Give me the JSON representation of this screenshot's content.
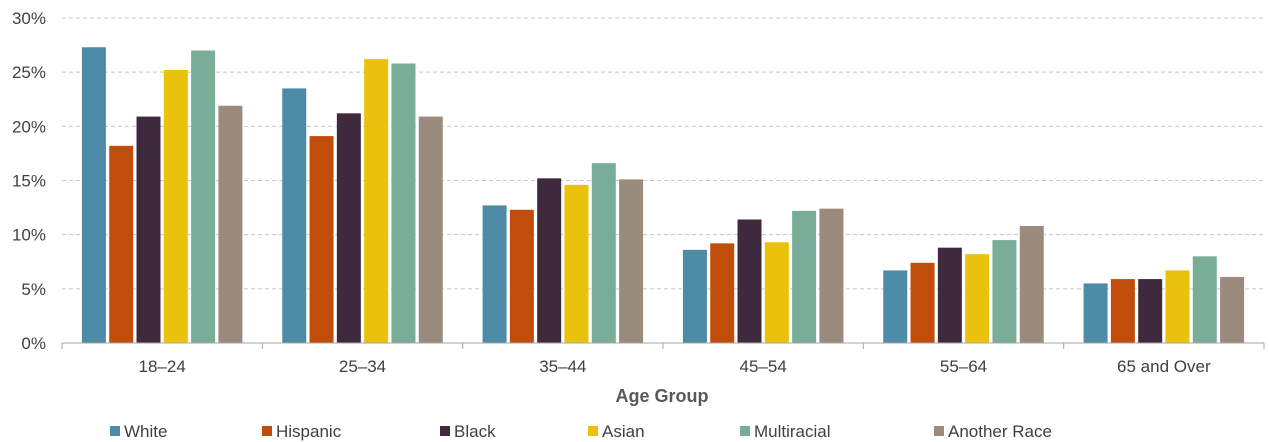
{
  "chart_data": {
    "type": "bar",
    "title": "",
    "xlabel": "Age Group",
    "ylabel": "",
    "ylim": [
      0,
      30
    ],
    "yticks": [
      "0%",
      "5%",
      "10%",
      "15%",
      "20%",
      "25%",
      "30%"
    ],
    "grid": "horizontal dashed",
    "legend_position": "bottom",
    "categories": [
      "18–24",
      "25–34",
      "35–44",
      "45–54",
      "55–64",
      "65 and Over"
    ],
    "series": [
      {
        "name": "White",
        "color": "#4e8ba7",
        "values": [
          27.3,
          23.5,
          12.7,
          8.6,
          6.7,
          5.5
        ]
      },
      {
        "name": "Hispanic",
        "color": "#c04e0a",
        "values": [
          18.2,
          19.1,
          12.3,
          9.2,
          7.4,
          5.9
        ]
      },
      {
        "name": "Black",
        "color": "#3f293c",
        "values": [
          20.9,
          21.2,
          15.2,
          11.4,
          8.8,
          5.9
        ]
      },
      {
        "name": "Asian",
        "color": "#eac10b",
        "values": [
          25.2,
          26.2,
          14.6,
          9.3,
          8.2,
          6.7
        ]
      },
      {
        "name": "Multiracial",
        "color": "#79ad98",
        "values": [
          27.0,
          25.8,
          16.6,
          12.2,
          9.5,
          8.0
        ]
      },
      {
        "name": "Another Race",
        "color": "#9b8b7d",
        "values": [
          21.9,
          20.9,
          15.1,
          12.4,
          10.8,
          6.1
        ]
      }
    ]
  }
}
